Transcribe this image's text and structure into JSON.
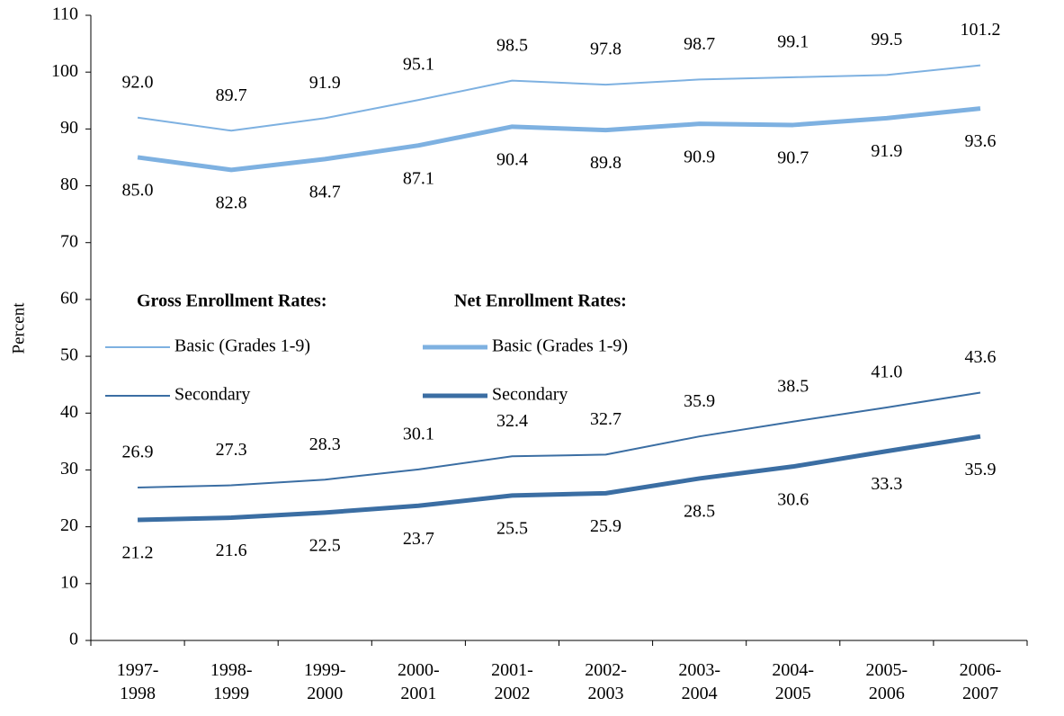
{
  "chart_data": {
    "type": "line",
    "ylabel": "Percent",
    "categories": [
      [
        "1997-",
        "1998"
      ],
      [
        "1998-",
        "1999"
      ],
      [
        "1999-",
        "2000"
      ],
      [
        "2000-",
        "2001"
      ],
      [
        "2001-",
        "2002"
      ],
      [
        "2002-",
        "2003"
      ],
      [
        "2003-",
        "2004"
      ],
      [
        "2004-",
        "2005"
      ],
      [
        "2005-",
        "2006"
      ],
      [
        "2006-",
        "2007"
      ]
    ],
    "legend_titles": [
      "Gross Enrollment Rates:",
      "Net Enrollment Rates:"
    ],
    "series": [
      {
        "name": "Basic (Grades 1-9)",
        "color": "#7eb1e1",
        "width": 2,
        "values": [
          92.0,
          89.7,
          91.9,
          95.1,
          98.5,
          97.8,
          98.7,
          99.1,
          99.5,
          101.2
        ],
        "value_labels": [
          "92.0",
          "89.7",
          "91.9",
          "95.1",
          "98.5",
          "97.8",
          "98.7",
          "99.1",
          "99.5",
          "101.2"
        ]
      },
      {
        "name": "Secondary",
        "color": "#3b6ea3",
        "width": 2,
        "values": [
          26.9,
          27.3,
          28.3,
          30.1,
          32.4,
          32.7,
          35.9,
          38.5,
          41.0,
          43.6
        ],
        "value_labels": [
          "26.9",
          "27.3",
          "28.3",
          "30.1",
          "32.4",
          "32.7",
          "35.9",
          "38.5",
          "41.0",
          "43.6"
        ]
      },
      {
        "name": "Basic (Grades 1-9)",
        "color": "#7eb1e1",
        "width": 5,
        "values": [
          85.0,
          82.8,
          84.7,
          87.1,
          90.4,
          89.8,
          90.9,
          90.7,
          91.9,
          93.6
        ],
        "value_labels": [
          "85.0",
          "82.8",
          "84.7",
          "87.1",
          "90.4",
          "89.8",
          "90.9",
          "90.7",
          "91.9",
          "93.6"
        ]
      },
      {
        "name": "Secondary",
        "color": "#3b6ea3",
        "width": 5,
        "values": [
          21.2,
          21.6,
          22.5,
          23.7,
          25.5,
          25.9,
          28.5,
          30.6,
          33.3,
          35.9
        ],
        "value_labels": [
          "21.2",
          "21.6",
          "22.5",
          "23.7",
          "25.5",
          "25.9",
          "28.5",
          "30.6",
          "33.3",
          "35.9"
        ]
      }
    ],
    "ylim": [
      0,
      110
    ],
    "yticks": [
      0,
      10,
      20,
      30,
      40,
      50,
      60,
      70,
      80,
      90,
      100,
      110
    ],
    "grid": false
  }
}
